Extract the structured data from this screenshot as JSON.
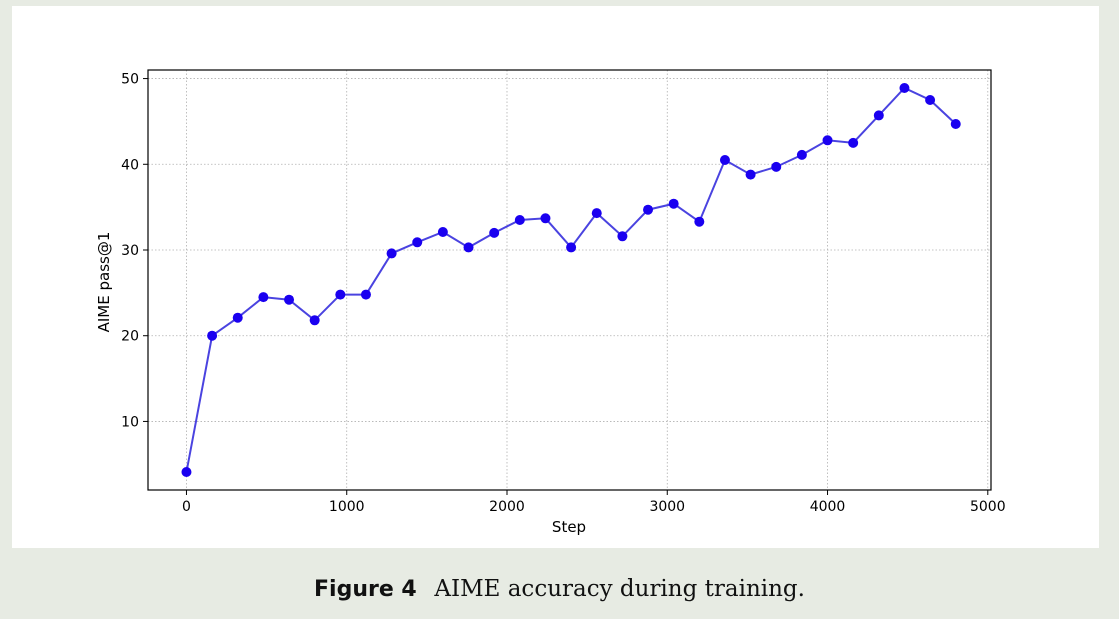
{
  "figure": {
    "label": "Figure 4",
    "caption": "AIME accuracy during training."
  },
  "chart_data": {
    "type": "line",
    "title": "",
    "xlabel": "Step",
    "ylabel": "AIME pass@1",
    "xlim": [
      -240,
      5020
    ],
    "ylim": [
      2,
      51
    ],
    "xticks": [
      0,
      1000,
      2000,
      3000,
      4000,
      5000
    ],
    "yticks": [
      10,
      20,
      30,
      40,
      50
    ],
    "grid": true,
    "series": [
      {
        "color": "#1a00f0",
        "line_color": "#4a43e0",
        "x": [
          0,
          160,
          320,
          480,
          640,
          800,
          960,
          1120,
          1280,
          1440,
          1600,
          1760,
          1920,
          2080,
          2240,
          2400,
          2560,
          2720,
          2880,
          3040,
          3200,
          3360,
          3520,
          3680,
          3840,
          4000,
          4160,
          4320,
          4480,
          4640,
          4800
        ],
        "y": [
          4.1,
          20.0,
          22.1,
          24.5,
          24.2,
          21.8,
          24.8,
          24.8,
          29.6,
          30.9,
          32.1,
          30.3,
          32.0,
          33.5,
          33.7,
          30.3,
          34.3,
          31.6,
          34.7,
          35.4,
          33.3,
          40.5,
          38.8,
          39.7,
          41.1,
          42.8,
          42.5,
          45.7,
          48.9,
          47.5,
          44.7
        ]
      }
    ]
  }
}
